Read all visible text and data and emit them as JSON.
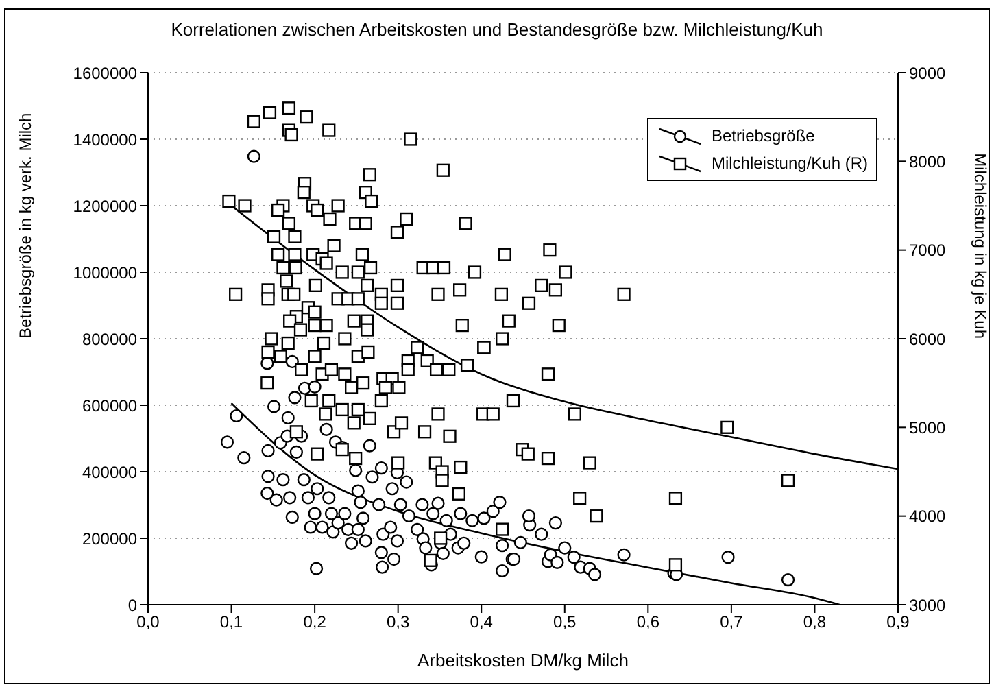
{
  "chart_data": {
    "type": "scatter",
    "title": "Korrelationen zwischen Arbeitskosten und Bestandesgröße bzw. Milchleistung/Kuh",
    "xlabel": "Arbeitskosten DM/kg Milch",
    "ylabel": "Betriebsgröße in kg verk. Milch",
    "y2label": "Milchleistung in kg je Kuh",
    "xlim": [
      0,
      0.9
    ],
    "xticks": [
      {
        "value": 0,
        "label": "0,0"
      },
      {
        "value": 0.1,
        "label": "0,1"
      },
      {
        "value": 0.2,
        "label": "0,2"
      },
      {
        "value": 0.3,
        "label": "0,3"
      },
      {
        "value": 0.4,
        "label": "0,4"
      },
      {
        "value": 0.5,
        "label": "0,5"
      },
      {
        "value": 0.6,
        "label": "0,6"
      },
      {
        "value": 0.7,
        "label": "0,7"
      },
      {
        "value": 0.8,
        "label": "0,8"
      },
      {
        "value": 0.9,
        "label": "0,9"
      }
    ],
    "ylim": [
      0,
      1600000
    ],
    "yticks": [
      0,
      200000,
      400000,
      600000,
      800000,
      1000000,
      1200000,
      1400000,
      1600000
    ],
    "y2lim": [
      3000,
      9000
    ],
    "y2ticks": [
      3000,
      4000,
      5000,
      6000,
      7000,
      8000,
      9000
    ],
    "grid": true,
    "legend": "top right",
    "series": [
      {
        "name": "Betriebsgröße",
        "marker": "circle",
        "color": "#000000",
        "x": [
          0.095,
          0.106,
          0.115,
          0.143,
          0.144,
          0.144,
          0.151,
          0.154,
          0.159,
          0.162,
          0.168,
          0.167,
          0.17,
          0.173,
          0.176,
          0.178,
          0.184,
          0.187,
          0.188,
          0.192,
          0.195,
          0.2,
          0.2,
          0.202,
          0.203,
          0.209,
          0.214,
          0.217,
          0.22,
          0.222,
          0.225,
          0.228,
          0.233,
          0.236,
          0.24,
          0.244,
          0.249,
          0.252,
          0.252,
          0.255,
          0.258,
          0.261,
          0.266,
          0.269,
          0.277,
          0.28,
          0.28,
          0.281,
          0.282,
          0.291,
          0.293,
          0.295,
          0.299,
          0.299,
          0.303,
          0.31,
          0.313,
          0.323,
          0.329,
          0.33,
          0.333,
          0.34,
          0.342,
          0.348,
          0.351,
          0.354,
          0.358,
          0.363,
          0.372,
          0.375,
          0.379,
          0.389,
          0.4,
          0.403,
          0.414,
          0.422,
          0.425,
          0.425,
          0.437,
          0.447,
          0.439,
          0.458,
          0.457,
          0.472,
          0.489,
          0.48,
          0.483,
          0.491,
          0.5,
          0.511,
          0.519,
          0.53,
          0.536,
          0.571,
          0.631,
          0.634,
          0.696,
          0.768,
          0.127,
          0.143,
          0.173
        ],
        "values": [
          489000,
          568000,
          442000,
          335000,
          386000,
          463000,
          596000,
          315000,
          487000,
          376000,
          562000,
          507000,
          322000,
          263000,
          623000,
          459000,
          507000,
          376000,
          651000,
          322000,
          233000,
          655000,
          274000,
          109000,
          349000,
          233000,
          527000,
          322000,
          274000,
          219000,
          489000,
          246000,
          473000,
          274000,
          226000,
          185000,
          404000,
          342000,
          226000,
          308000,
          260000,
          192000,
          478000,
          384000,
          301000,
          411000,
          157000,
          113000,
          212000,
          233000,
          349000,
          137000,
          192000,
          397000,
          301000,
          369000,
          267000,
          226000,
          301000,
          198000,
          171000,
          120000,
          274000,
          305000,
          185000,
          154000,
          253000,
          212000,
          171000,
          274000,
          185000,
          253000,
          144000,
          260000,
          281000,
          308000,
          178000,
          102000,
          137000,
          187000,
          137000,
          240000,
          267000,
          212000,
          246000,
          130000,
          150000,
          127000,
          171000,
          143000,
          113000,
          109000,
          91000,
          150000,
          95000,
          91000,
          143000,
          75000,
          1348000,
          726000,
          731000
        ]
      },
      {
        "name": "Milchleistung/Kuh (R)",
        "marker": "square",
        "axis": "y2",
        "color": "#000000",
        "x": [
          0.097,
          0.116,
          0.127,
          0.146,
          0.169,
          0.169,
          0.172,
          0.19,
          0.217,
          0.188,
          0.187,
          0.162,
          0.156,
          0.198,
          0.203,
          0.228,
          0.218,
          0.266,
          0.261,
          0.268,
          0.249,
          0.261,
          0.299,
          0.31,
          0.315,
          0.354,
          0.381,
          0.151,
          0.169,
          0.176,
          0.156,
          0.176,
          0.162,
          0.177,
          0.198,
          0.209,
          0.214,
          0.223,
          0.257,
          0.267,
          0.233,
          0.252,
          0.263,
          0.201,
          0.166,
          0.105,
          0.144,
          0.144,
          0.168,
          0.175,
          0.228,
          0.24,
          0.252,
          0.28,
          0.28,
          0.299,
          0.299,
          0.33,
          0.342,
          0.355,
          0.348,
          0.374,
          0.392,
          0.428,
          0.424,
          0.433,
          0.425,
          0.377,
          0.403,
          0.192,
          0.2,
          0.178,
          0.17,
          0.183,
          0.2,
          0.214,
          0.211,
          0.236,
          0.247,
          0.263,
          0.263,
          0.148,
          0.168,
          0.323,
          0.144,
          0.159,
          0.184,
          0.2,
          0.209,
          0.22,
          0.236,
          0.252,
          0.264,
          0.143,
          0.196,
          0.217,
          0.213,
          0.233,
          0.244,
          0.258,
          0.252,
          0.247,
          0.266,
          0.28,
          0.282,
          0.293,
          0.285,
          0.301,
          0.312,
          0.312,
          0.335,
          0.346,
          0.361,
          0.383,
          0.295,
          0.304,
          0.332,
          0.348,
          0.362,
          0.403,
          0.402,
          0.414,
          0.438,
          0.178,
          0.203,
          0.233,
          0.249,
          0.3,
          0.345,
          0.375,
          0.353,
          0.353,
          0.373,
          0.351,
          0.339,
          0.425,
          0.482,
          0.501,
          0.472,
          0.489,
          0.457,
          0.493,
          0.571,
          0.48,
          0.512,
          0.695,
          0.449,
          0.456,
          0.48,
          0.53,
          0.768,
          0.518,
          0.633,
          0.538,
          0.633
        ],
        "values": [
          7550,
          7500,
          8450,
          8550,
          8600,
          8350,
          8300,
          8500,
          8350,
          7750,
          7650,
          7500,
          7450,
          7500,
          7450,
          7500,
          7350,
          7850,
          7650,
          7550,
          7300,
          7300,
          7200,
          7350,
          8250,
          7900,
          7300,
          7150,
          7300,
          7150,
          6950,
          6950,
          6800,
          6800,
          6950,
          6900,
          6850,
          7050,
          6950,
          6800,
          6750,
          6750,
          6600,
          6600,
          6650,
          6500,
          6550,
          6450,
          6500,
          6500,
          6450,
          6450,
          6450,
          6500,
          6400,
          6600,
          6400,
          6800,
          6800,
          6800,
          6500,
          6550,
          6750,
          6950,
          6500,
          6200,
          6000,
          6150,
          5900,
          6350,
          6300,
          6250,
          6200,
          6100,
          6150,
          6150,
          5950,
          6000,
          6200,
          6200,
          6100,
          6000,
          5950,
          5900,
          5850,
          5800,
          5650,
          5800,
          5600,
          5650,
          5600,
          5800,
          5850,
          5500,
          5300,
          5300,
          5150,
          5200,
          5450,
          5500,
          5200,
          5050,
          5100,
          5300,
          5550,
          5550,
          5450,
          5450,
          5750,
          5650,
          5750,
          5650,
          5650,
          5700,
          4950,
          5050,
          4950,
          5150,
          4900,
          5900,
          5150,
          5150,
          5300,
          4950,
          4700,
          4750,
          4650,
          4600,
          4600,
          4550,
          4500,
          4400,
          4250,
          3750,
          3500,
          3850,
          7000,
          6750,
          6600,
          6550,
          6400,
          6150,
          6500,
          5600,
          5150,
          5000,
          4750,
          4700,
          4650,
          4600,
          4400,
          4200,
          4200,
          4000,
          3450
        ]
      },
      {
        "type": "line",
        "color": "#000000",
        "x": [
          0.1,
          0.2,
          0.3,
          0.4,
          0.5,
          0.6,
          0.7,
          0.8,
          0.83
        ],
        "values": [
          606000,
          390000,
          281000,
          215000,
          160000,
          112000,
          65000,
          20000,
          0
        ]
      },
      {
        "type": "line",
        "axis": "y2",
        "color": "#000000",
        "x": [
          0.1,
          0.2,
          0.3,
          0.4,
          0.5,
          0.6,
          0.7,
          0.8,
          0.9
        ],
        "values": [
          7500,
          6780,
          6130,
          5600,
          5290,
          5080,
          4890,
          4700,
          4530
        ]
      }
    ]
  }
}
